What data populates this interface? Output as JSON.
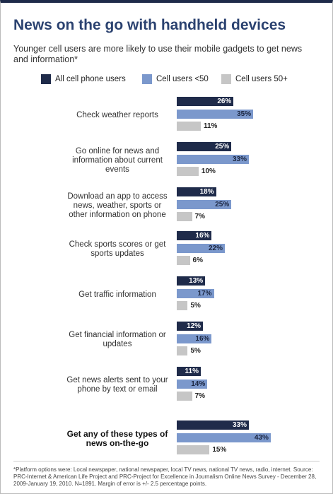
{
  "chart_data": {
    "type": "bar",
    "orientation": "horizontal",
    "title": "News on the go with handheld devices",
    "subtitle": "Younger cell users are more likely to use their mobile gadgets to get news and information*",
    "categories": [
      "Check weather reports",
      "Go online for news and information about current events",
      "Download an app to access news, weather, sports or other information on phone",
      "Check sports scores or get sports updates",
      "Get traffic information",
      "Get financial information or updates",
      "Get news alerts sent to your phone by text or email",
      "Get any of these types of news on-the-go"
    ],
    "series": [
      {
        "name": "All cell phone users",
        "color": "#1f2b4a",
        "values": [
          26,
          25,
          18,
          16,
          13,
          12,
          11,
          33
        ],
        "value_labels": [
          "26%",
          "25%",
          "18%",
          "16%",
          "13%",
          "12%",
          "11%",
          "33%"
        ]
      },
      {
        "name": "Cell users <50",
        "color": "#7b98cc",
        "values": [
          35,
          33,
          25,
          22,
          17,
          16,
          14,
          43
        ],
        "value_labels": [
          "35%",
          "33%",
          "25%",
          "22%",
          "17%",
          "16%",
          "14%",
          "43%"
        ]
      },
      {
        "name": "Cell users 50+",
        "color": "#c6c6c6",
        "values": [
          11,
          10,
          7,
          6,
          5,
          5,
          7,
          15
        ],
        "value_labels": [
          "11%",
          "10%",
          "7%",
          "6%",
          "5%",
          "5%",
          "7%",
          "15%"
        ]
      }
    ],
    "footnote": "*Platform options were: Local newspaper, national newspaper, local TV news, national TV news, radio, internet. Source: PRC-Internet & American Life Project and PRC-Project for Excellence in Journalism Online News Survey - December 28, 2009-January 19, 2010. N=1891. Margin of error is +/- 2.5 percentage points."
  }
}
